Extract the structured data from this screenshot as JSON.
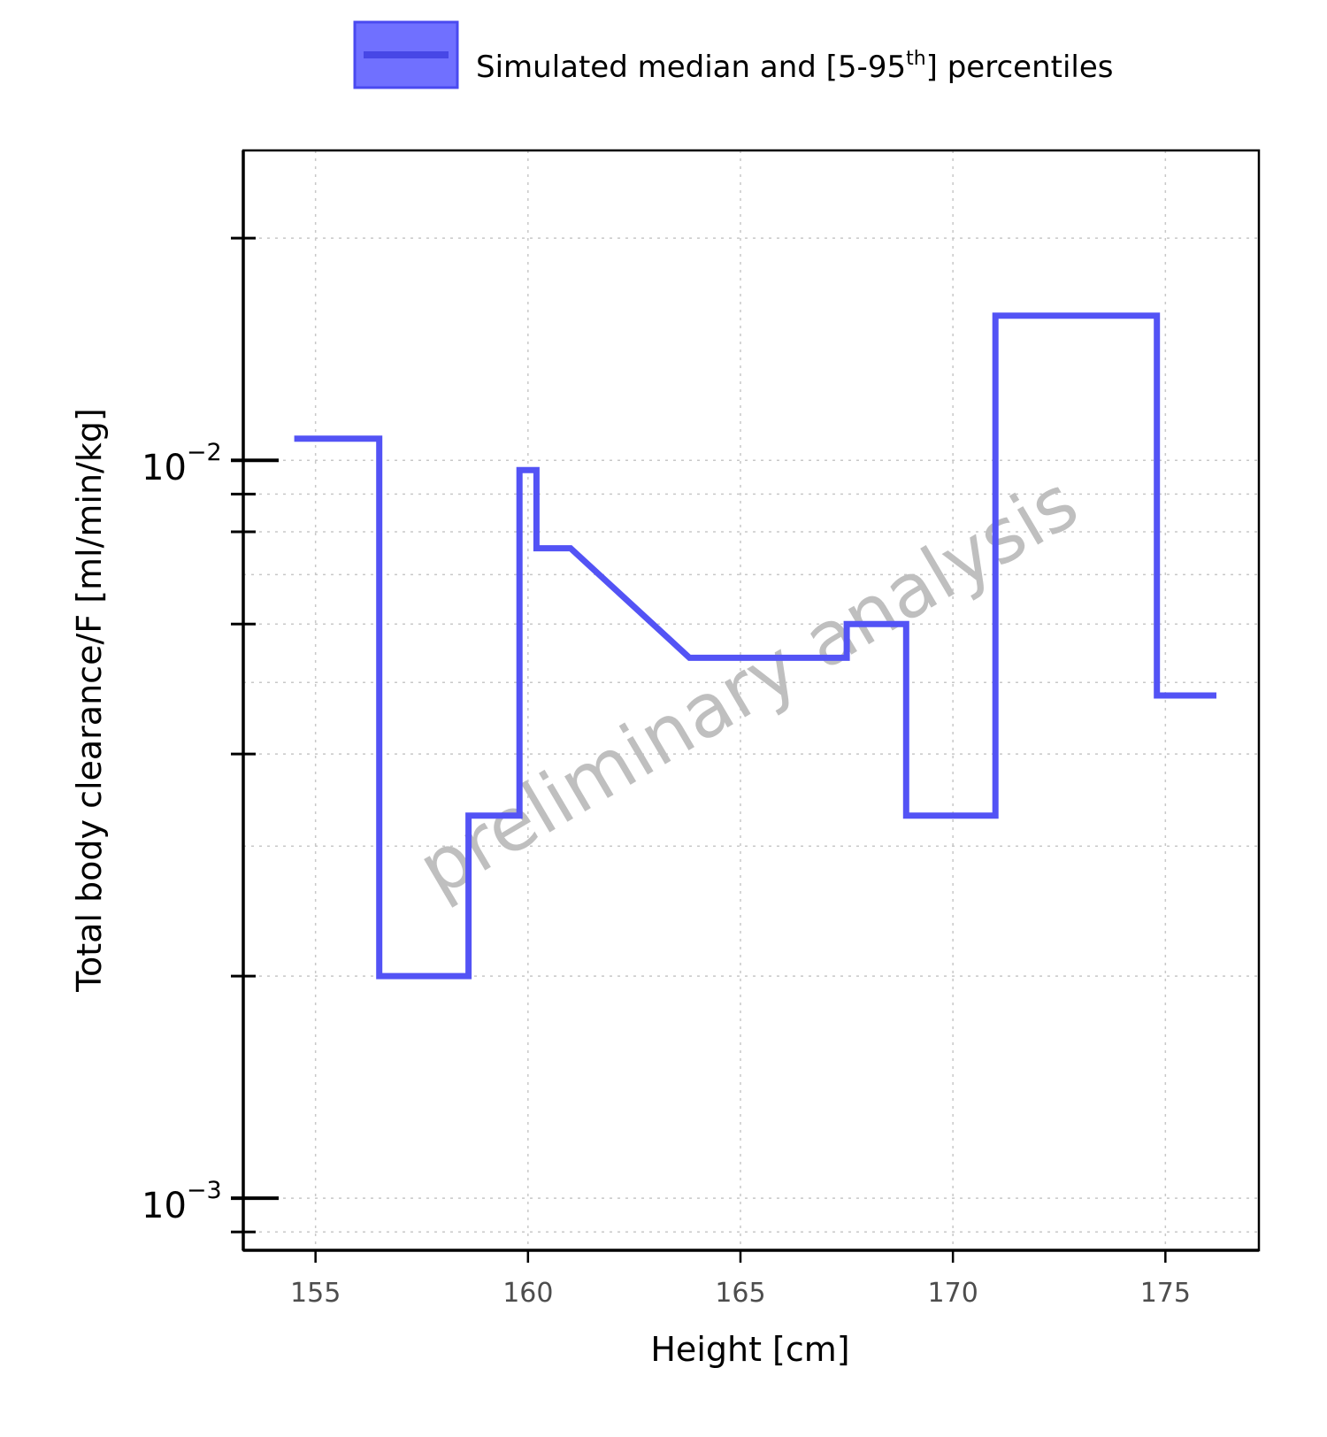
{
  "chart_data": {
    "type": "line",
    "step": true,
    "xlabel": "Height [cm]",
    "ylabel": "Total body clearance/F [ml/min/kg]",
    "xlim": [
      153.3,
      177.2
    ],
    "ylim": [
      0.00085,
      0.0263
    ],
    "yscale": "log",
    "xticks": [
      155,
      160,
      165,
      170,
      175
    ],
    "xtick_labels": [
      "155",
      "160",
      "165",
      "170",
      "175"
    ],
    "yticks": [
      {
        "value": 0.01,
        "base": "10",
        "exp": "−2"
      },
      {
        "value": 0.001,
        "base": "10",
        "exp": "−3"
      }
    ],
    "grid": true,
    "legend": {
      "placement": "top-center",
      "label_prefix": "Simulated median and [5-95",
      "label_sup": "th",
      "label_suffix": "] percentiles"
    },
    "watermark": "preliminary analysis",
    "series": [
      {
        "name": "Simulated median and [5-95th] percentiles",
        "color": "#5353f5",
        "x": [
          154.5,
          156.5,
          156.5,
          158.6,
          158.6,
          159.8,
          159.8,
          160.2,
          160.2,
          161.0,
          163.8,
          167.5,
          167.5,
          168.9,
          168.9,
          171.0,
          171.0,
          174.8,
          174.8,
          176.2
        ],
        "y": [
          0.0107,
          0.0107,
          0.002,
          0.002,
          0.0033,
          0.0033,
          0.0097,
          0.0097,
          0.0076,
          0.0076,
          0.0054,
          0.0054,
          0.006,
          0.006,
          0.0033,
          0.0033,
          0.0157,
          0.0157,
          0.0048,
          0.0048
        ]
      }
    ]
  }
}
